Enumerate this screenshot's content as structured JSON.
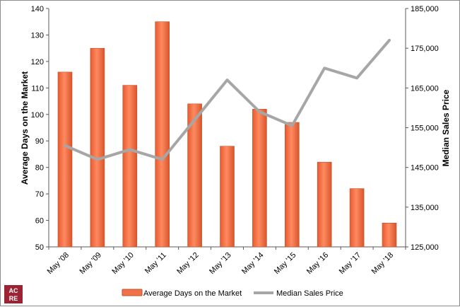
{
  "chart_data": {
    "type": "bar",
    "categories": [
      "May '08",
      "May '09",
      "May '10",
      "May '11",
      "May '12",
      "May '13",
      "May '14",
      "May '15",
      "May '16",
      "May '17",
      "May '18"
    ],
    "series": [
      {
        "name": "Average Days on the Market",
        "type": "bar",
        "axis": "left",
        "color": "#f07048",
        "values": [
          116,
          125,
          111,
          135,
          104,
          88,
          102,
          97,
          82,
          72,
          59
        ]
      },
      {
        "name": "Median Sales Price",
        "type": "line",
        "axis": "right",
        "color": "#a6a6a6",
        "values": [
          150500,
          147000,
          149500,
          147000,
          157000,
          167000,
          159000,
          155500,
          170000,
          167500,
          177000
        ]
      }
    ],
    "y_left": {
      "label": "Average Days on the Market",
      "range": [
        50,
        140
      ],
      "ticks": [
        "50",
        "60",
        "70",
        "80",
        "90",
        "100",
        "110",
        "120",
        "130",
        "140"
      ]
    },
    "y_right": {
      "label": "Median Sales Price",
      "range": [
        125000,
        185000
      ],
      "ticks": [
        "125,000",
        "135,000",
        "145,000",
        "155,000",
        "165,000",
        "175,000",
        "185,000"
      ]
    },
    "grid": false,
    "legend_position": "bottom"
  },
  "logo": {
    "text_top": "AC",
    "text_bottom": "RE",
    "color": "#9b2335"
  }
}
